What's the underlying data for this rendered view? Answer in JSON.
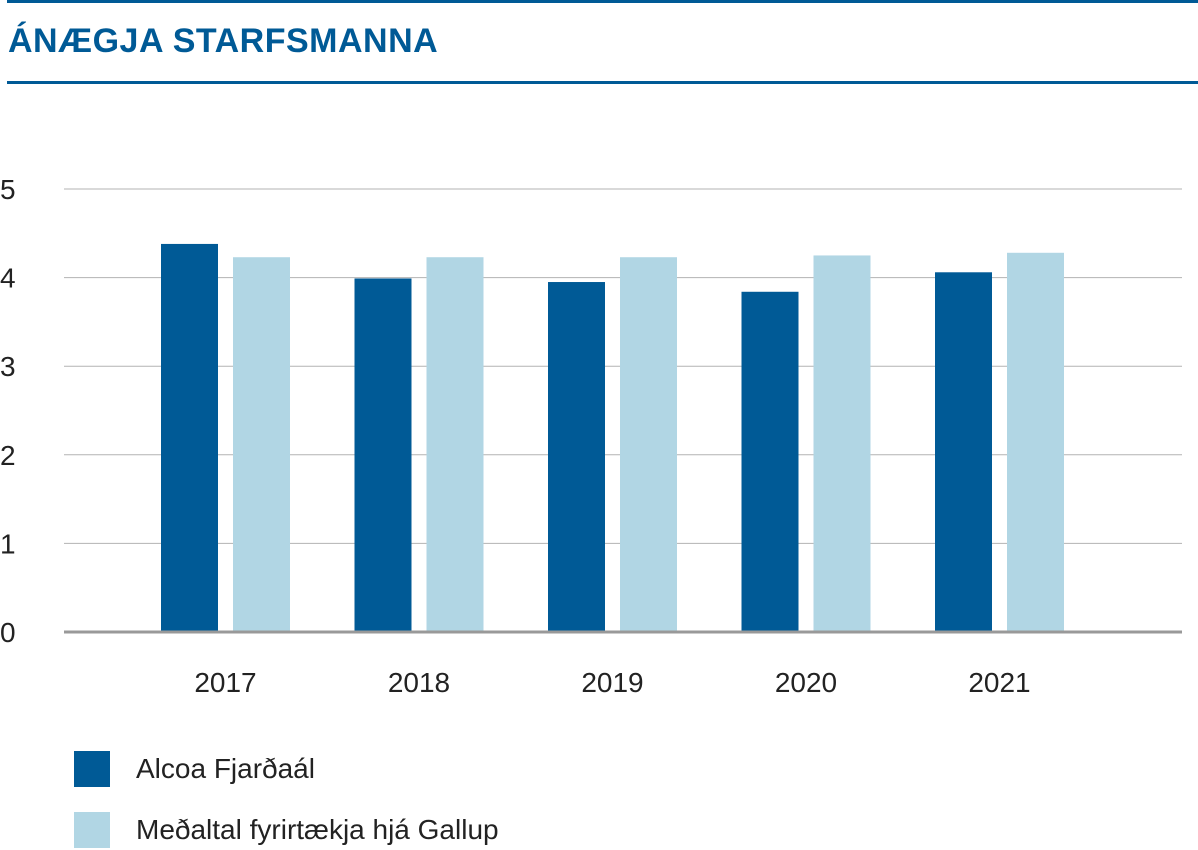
{
  "title": "ÁNÆGJA STARFSMANNA",
  "colors": {
    "accent": "#005a96",
    "series_dark": "#005a96",
    "series_light": "#b1d6e4",
    "grid": "#b3b3b3",
    "axis": "#999999"
  },
  "chart_data": {
    "type": "bar",
    "categories": [
      "2017",
      "2018",
      "2019",
      "2020",
      "2021"
    ],
    "series": [
      {
        "name": "Alcoa Fjarðaál",
        "values": [
          4.38,
          3.99,
          3.95,
          3.84,
          4.06
        ]
      },
      {
        "name": "Meðaltal fyrirtækja hjá Gallup",
        "values": [
          4.23,
          4.23,
          4.23,
          4.25,
          4.28
        ]
      }
    ],
    "ylim": [
      0,
      5
    ],
    "yticks": [
      "0",
      "1",
      "2",
      "3",
      "4",
      "5"
    ],
    "grid": true,
    "legend": "bottom-left"
  }
}
